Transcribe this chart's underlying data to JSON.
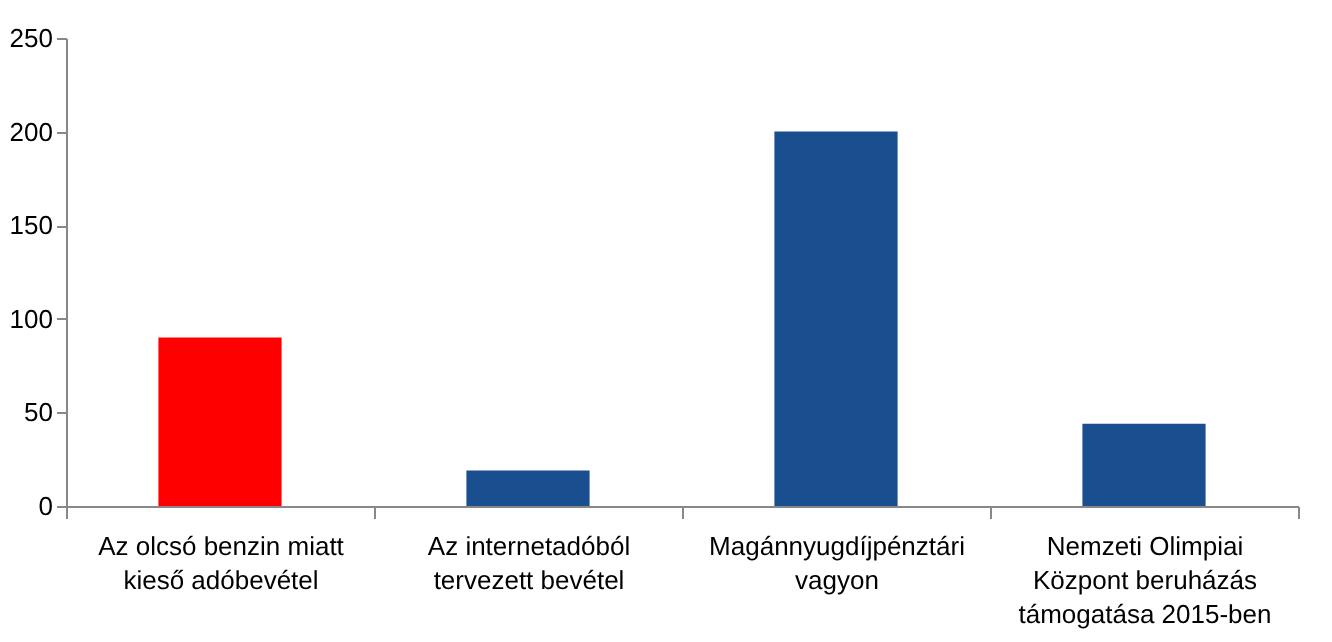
{
  "chart_data": {
    "type": "bar",
    "categories": [
      "Az olcsó benzin miatt kieső adóbevétel",
      "Az internetadóból tervezett bevétel",
      "Magánnyugdíjpénztári vagyon",
      "Nemzeti Olimpiai Központ beruházás támogatása 2015-ben"
    ],
    "values": [
      90,
      19,
      200,
      44
    ],
    "colors": [
      "#ff0000",
      "#1a4f8f",
      "#1a4f8f",
      "#1a4f8f"
    ],
    "ylim": [
      0,
      250
    ],
    "yticks": [
      0,
      50,
      100,
      150,
      200,
      250
    ],
    "grid": false
  }
}
